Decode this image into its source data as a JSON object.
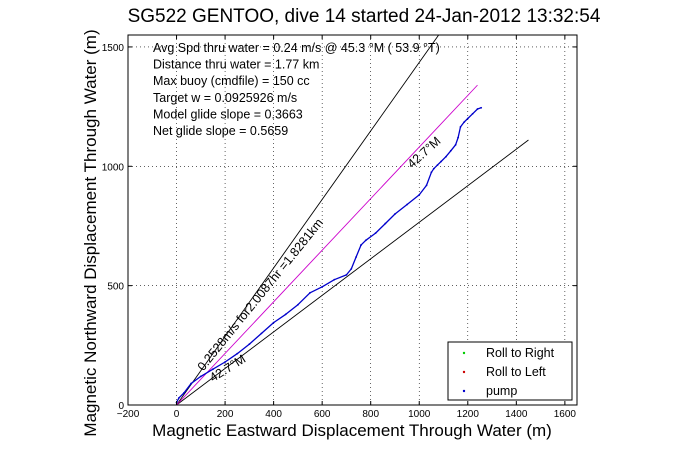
{
  "chart_data": {
    "type": "line",
    "title": "SG522 GENTOO, dive 14 started 24-Jan-2012 13:32:54",
    "xlabel": "Magnetic Eastward Displacement Through Water (m)",
    "ylabel": "Magnetic Northward Displacement Through Water (m)",
    "xlim": [
      -200,
      1650
    ],
    "ylim": [
      0,
      1550
    ],
    "xticks": [
      -200,
      0,
      200,
      400,
      600,
      800,
      1000,
      1200,
      1400,
      1600
    ],
    "yticks": [
      0,
      500,
      1000,
      1500
    ],
    "xtick_labels": [
      "−200",
      "0",
      "200",
      "400",
      "600",
      "800",
      "1000",
      "1200",
      "1400",
      "1600"
    ],
    "ytick_labels": [
      "0",
      "500",
      "1000",
      "1500"
    ],
    "grid": true,
    "stats": [
      "Avg Spd thru water =  0.24 m/s @  45.3 °M ( 53.9 °T)",
      "Distance thru water =  1.77 km",
      "Max buoy (cmdfile) = 150 cc",
      "Target w = 0.0925926 m/s",
      "Model glide slope = 0.3663",
      "Net glide slope = 0.5659"
    ],
    "annotations": [
      {
        "text": "0.2528m/s for2.0087hr =1.8281km",
        "x": 110,
        "y": 140,
        "angle_deg": 51
      },
      {
        "text": "42.7°M",
        "x": 970,
        "y": 990,
        "angle_deg": 42
      },
      {
        "text": "42.7°M",
        "x": 150,
        "y": 95,
        "angle_deg": 32
      }
    ],
    "reference_lines": [
      {
        "name": "steep",
        "color": "#000000",
        "x": [
          0,
          1080
        ],
        "y": [
          0,
          1550
        ]
      },
      {
        "name": "shallow",
        "color": "#000000",
        "x": [
          0,
          1450
        ],
        "y": [
          0,
          1110
        ]
      },
      {
        "name": "heading",
        "color": "#cc00cc",
        "x": [
          0,
          1240
        ],
        "y": [
          0,
          1340
        ]
      }
    ],
    "series": [
      {
        "name": "pump",
        "color": "#0000cc",
        "x": [
          0,
          10,
          30,
          60,
          100,
          150,
          200,
          250,
          300,
          350,
          400,
          450,
          500,
          550,
          600,
          650,
          700,
          720,
          740,
          760,
          780,
          820,
          860,
          900,
          950,
          1000,
          1030,
          1050,
          1060,
          1075,
          1090,
          1110,
          1130,
          1150,
          1160,
          1170,
          1185,
          1200,
          1220,
          1240,
          1255
        ],
        "y": [
          10,
          30,
          50,
          90,
          120,
          150,
          180,
          215,
          255,
          300,
          345,
          380,
          420,
          470,
          495,
          525,
          545,
          570,
          620,
          670,
          690,
          720,
          760,
          800,
          840,
          880,
          920,
          975,
          990,
          1005,
          1020,
          1040,
          1065,
          1090,
          1120,
          1165,
          1185,
          1200,
          1220,
          1240,
          1245
        ]
      },
      {
        "name": "Roll to Right",
        "color": "#00cc00",
        "x": [],
        "y": []
      },
      {
        "name": "Roll to Left",
        "color": "#cc0000",
        "x": [],
        "y": []
      }
    ],
    "legend": {
      "position": "bottom-right",
      "entries": [
        {
          "label": "Roll to Right",
          "color": "#00cc00"
        },
        {
          "label": "Roll to Left",
          "color": "#cc0000"
        },
        {
          "label": "pump",
          "color": "#0000cc"
        }
      ]
    }
  }
}
